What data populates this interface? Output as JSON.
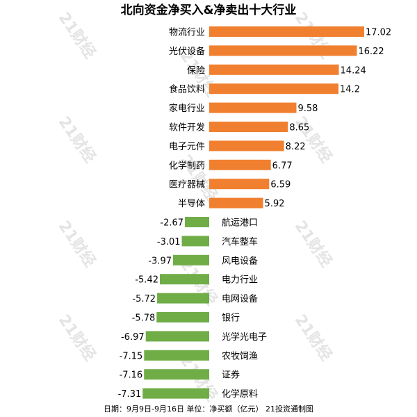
{
  "chart_data": {
    "type": "bar",
    "orientation": "horizontal",
    "title": "北向资金净买入&净卖出十大行业",
    "categories": [
      "物流行业",
      "光伏设备",
      "保险",
      "食品饮料",
      "家电行业",
      "软件开发",
      "电子元件",
      "化学制药",
      "医疗器械",
      "半导体",
      "航运港口",
      "汽车整车",
      "风电设备",
      "电力行业",
      "电网设备",
      "银行",
      "光学光电子",
      "农牧饲渔",
      "证券",
      "化学原料"
    ],
    "values": [
      17.02,
      16.22,
      14.24,
      14.2,
      9.58,
      8.65,
      8.22,
      6.77,
      6.59,
      5.92,
      -2.67,
      -3.01,
      -3.97,
      -5.42,
      -5.72,
      -5.78,
      -6.97,
      -7.15,
      -7.16,
      -7.31
    ],
    "value_labels": [
      "17.02",
      "16.22",
      "14.24",
      "14.2",
      "9.58",
      "8.65",
      "8.22",
      "6.77",
      "6.59",
      "5.92",
      "-2.67",
      "-3.01",
      "-3.97",
      "-5.42",
      "-5.72",
      "-5.78",
      "-6.97",
      "-7.15",
      "-7.16",
      "-7.31"
    ],
    "colors": {
      "positive": "#f08030",
      "negative": "#70ad47"
    },
    "footer": "日期：9月9日-9月16日 单位：净买额（亿元） 21投资通制图",
    "watermark": "21财经"
  }
}
